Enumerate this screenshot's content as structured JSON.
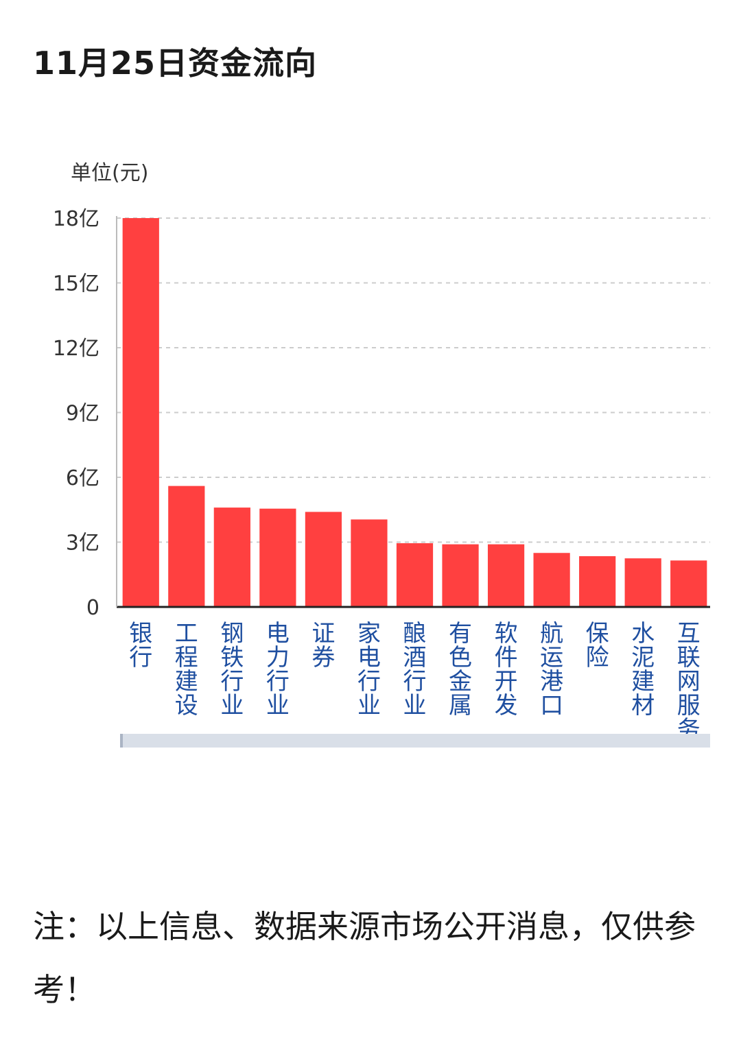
{
  "title": "11月25日资金流向",
  "footnote": "注：以上信息、数据来源市场公开消息，仅供参考！",
  "colors": {
    "bar": "#ff4040",
    "grid": "#cccccc",
    "axis": "#222222",
    "category_text": "#1f4fa0",
    "scrollbar": "#d9dfe8"
  },
  "chart_data": {
    "type": "bar",
    "unit_label": "单位(元)",
    "categories": [
      "银行",
      "工程建设",
      "钢铁行业",
      "电力行业",
      "证券",
      "家电行业",
      "酿酒行业",
      "有色金属",
      "软件开发",
      "航运港口",
      "保险",
      "水泥建材",
      "互联网服务"
    ],
    "values": [
      18.0,
      5.6,
      4.6,
      4.55,
      4.4,
      4.05,
      2.95,
      2.9,
      2.9,
      2.5,
      2.35,
      2.25,
      2.15
    ],
    "value_unit": "亿",
    "ylim": [
      0,
      18
    ],
    "yticks": [
      {
        "value": 0,
        "label": "0"
      },
      {
        "value": 3,
        "label": "3亿"
      },
      {
        "value": 6,
        "label": "6亿"
      },
      {
        "value": 9,
        "label": "9亿"
      },
      {
        "value": 12,
        "label": "12亿"
      },
      {
        "value": 15,
        "label": "15亿"
      },
      {
        "value": 18,
        "label": "18亿"
      }
    ],
    "grid": true,
    "legend": "none"
  }
}
